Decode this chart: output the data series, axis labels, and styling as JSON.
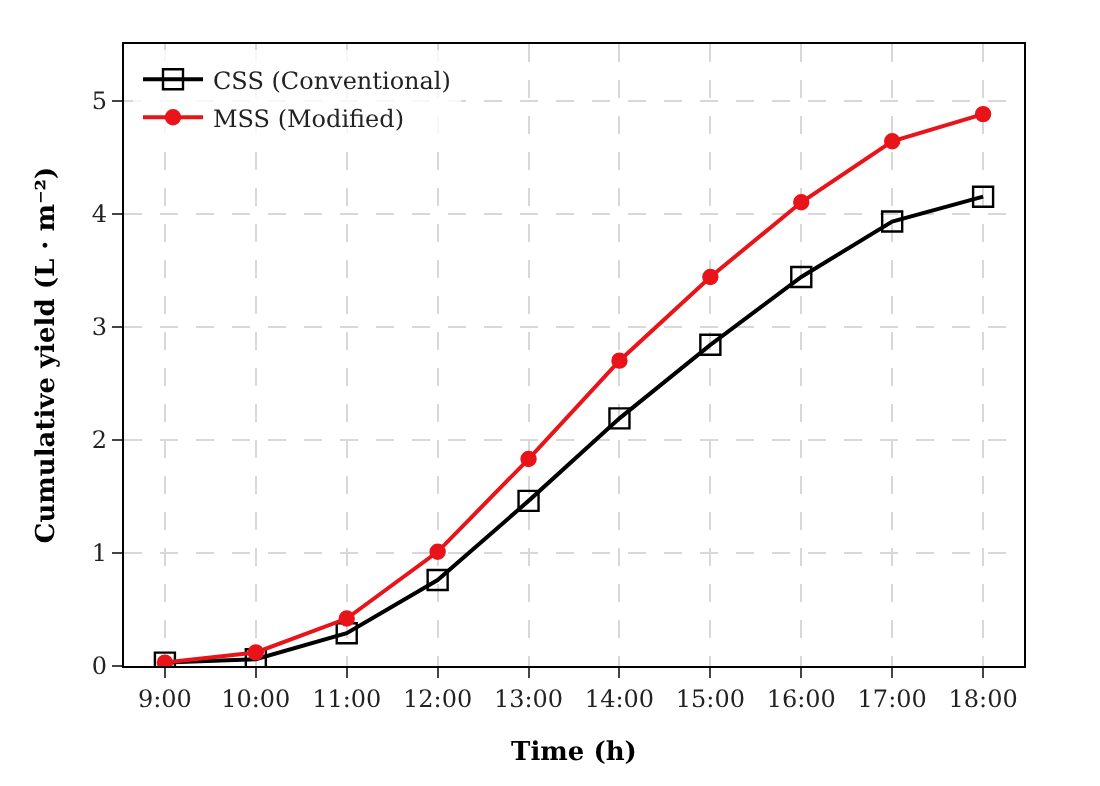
{
  "chart_data": {
    "type": "line",
    "xlabel": "Time (h)",
    "ylabel": "Cumulative yield (L · m⁻²)",
    "categories": [
      "9:00",
      "10:00",
      "11:00",
      "12:00",
      "13:00",
      "14:00",
      "15:00",
      "16:00",
      "17:00",
      "18:00"
    ],
    "series": [
      {
        "name": "CSS (Conventional)",
        "color": "#000000",
        "marker": "square",
        "values": [
          0.03,
          0.06,
          0.29,
          0.76,
          1.46,
          2.19,
          2.84,
          3.44,
          3.93,
          4.15
        ]
      },
      {
        "name": "MSS (Modified)",
        "color": "#e8141a",
        "marker": "circle",
        "values": [
          0.03,
          0.12,
          0.42,
          1.01,
          1.83,
          2.7,
          3.44,
          4.1,
          4.64,
          4.88
        ]
      }
    ],
    "ylim": [
      0,
      5.5
    ],
    "yticks": [
      0,
      1,
      2,
      3,
      4,
      5
    ],
    "grid": true,
    "legend": "top left",
    "line_style": "solid"
  }
}
